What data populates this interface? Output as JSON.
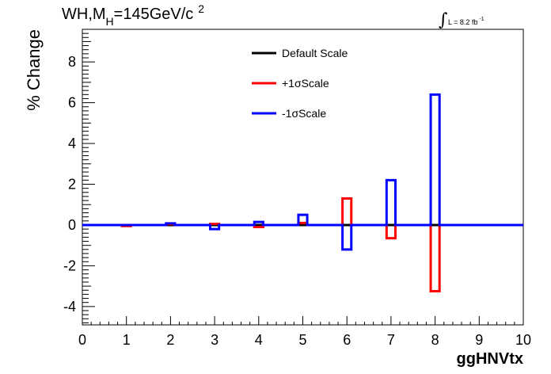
{
  "chart_data": {
    "type": "histogram-step",
    "title": "WH,M",
    "title_sub": "H",
    "title_rest": "=145GeV/c",
    "title_sup": "2",
    "lumi_label": "L = 8.2 fb",
    "lumi_sup": "-1",
    "xlabel": "ggHNVtx",
    "ylabel": "% Change",
    "xlim": [
      0,
      10
    ],
    "ylim": [
      -4.9,
      9.6
    ],
    "x_ticks": [
      "0",
      "1",
      "2",
      "3",
      "4",
      "5",
      "6",
      "7",
      "8",
      "9",
      "10"
    ],
    "y_ticks": [
      "-4",
      "-2",
      "0",
      "2",
      "4",
      "6",
      "8"
    ],
    "bin_edges": [
      0,
      0.9,
      1.1,
      1.9,
      2.1,
      2.9,
      3.1,
      3.9,
      4.1,
      4.9,
      5.1,
      5.9,
      6.1,
      6.9,
      7.1,
      7.9,
      8.1,
      10
    ],
    "series": [
      {
        "name": "Default Scale",
        "color": "#000000",
        "values": [
          0,
          0,
          0,
          0,
          0,
          0,
          0,
          0,
          0,
          0,
          0,
          0,
          0,
          0,
          0,
          0,
          0
        ]
      },
      {
        "name": "+1σScale",
        "color": "#ff0000",
        "values": [
          0,
          -0.05,
          0,
          0.05,
          0,
          0.05,
          0,
          -0.1,
          0,
          0.1,
          0,
          1.3,
          0,
          -0.65,
          0,
          -3.25,
          0
        ]
      },
      {
        "name": "-1σScale",
        "color": "#0000ff",
        "values": [
          0,
          0,
          0,
          0.08,
          0,
          -0.2,
          0,
          0.15,
          0,
          0.5,
          0,
          -1.2,
          0,
          2.2,
          0,
          6.4,
          0
        ]
      }
    ],
    "legend": [
      {
        "label": "Default Scale",
        "color": "#000000"
      },
      {
        "label": "+1σScale",
        "color": "#ff0000"
      },
      {
        "label": "-1σScale",
        "color": "#0000ff"
      }
    ],
    "grid": false,
    "legend_position": "top-center"
  }
}
